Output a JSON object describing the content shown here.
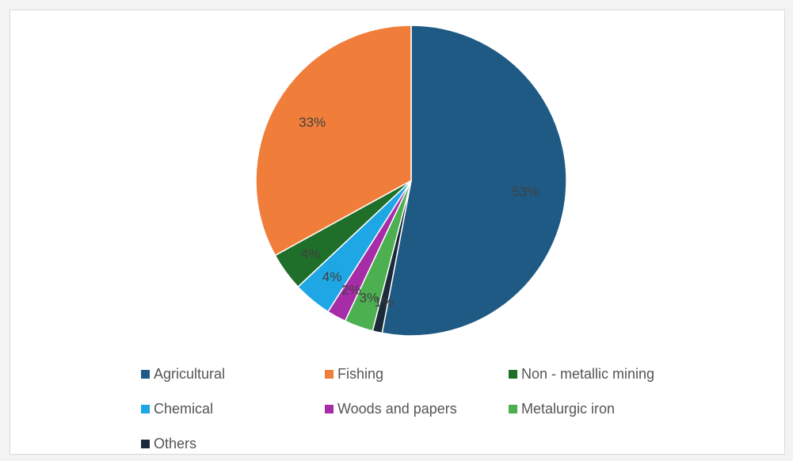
{
  "chart_data": {
    "type": "pie",
    "title": "",
    "slices": [
      {
        "label": "Agricultural",
        "value": 53,
        "data_label": "53%",
        "color": "#1f5a84"
      },
      {
        "label": "Others",
        "value": 1,
        "data_label": "1%",
        "color": "#1b2a3a"
      },
      {
        "label": "Metalurgic iron",
        "value": 3,
        "data_label": "3%",
        "color": "#4caf50"
      },
      {
        "label": "Woods and papers",
        "value": 2,
        "data_label": "2%",
        "color": "#a62ca8"
      },
      {
        "label": "Chemical",
        "value": 4,
        "data_label": "4%",
        "color": "#1ea6e5"
      },
      {
        "label": "Non - metallic mining",
        "value": 4,
        "data_label": "4%",
        "color": "#1f6e2a"
      },
      {
        "label": "Fishing",
        "value": 33,
        "data_label": "33%",
        "color": "#f07e3a"
      }
    ],
    "legend_position": "bottom"
  },
  "legend": [
    {
      "label": "Agricultural",
      "color": "#1f5a84"
    },
    {
      "label": "Fishing",
      "color": "#f07e3a"
    },
    {
      "label": "Non - metallic mining",
      "color": "#1f6e2a"
    },
    {
      "label": "Chemical",
      "color": "#1ea6e5"
    },
    {
      "label": "Woods and papers",
      "color": "#a62ca8"
    },
    {
      "label": "Metalurgic iron",
      "color": "#4caf50"
    },
    {
      "label": "Others",
      "color": "#1b2a3a"
    }
  ]
}
